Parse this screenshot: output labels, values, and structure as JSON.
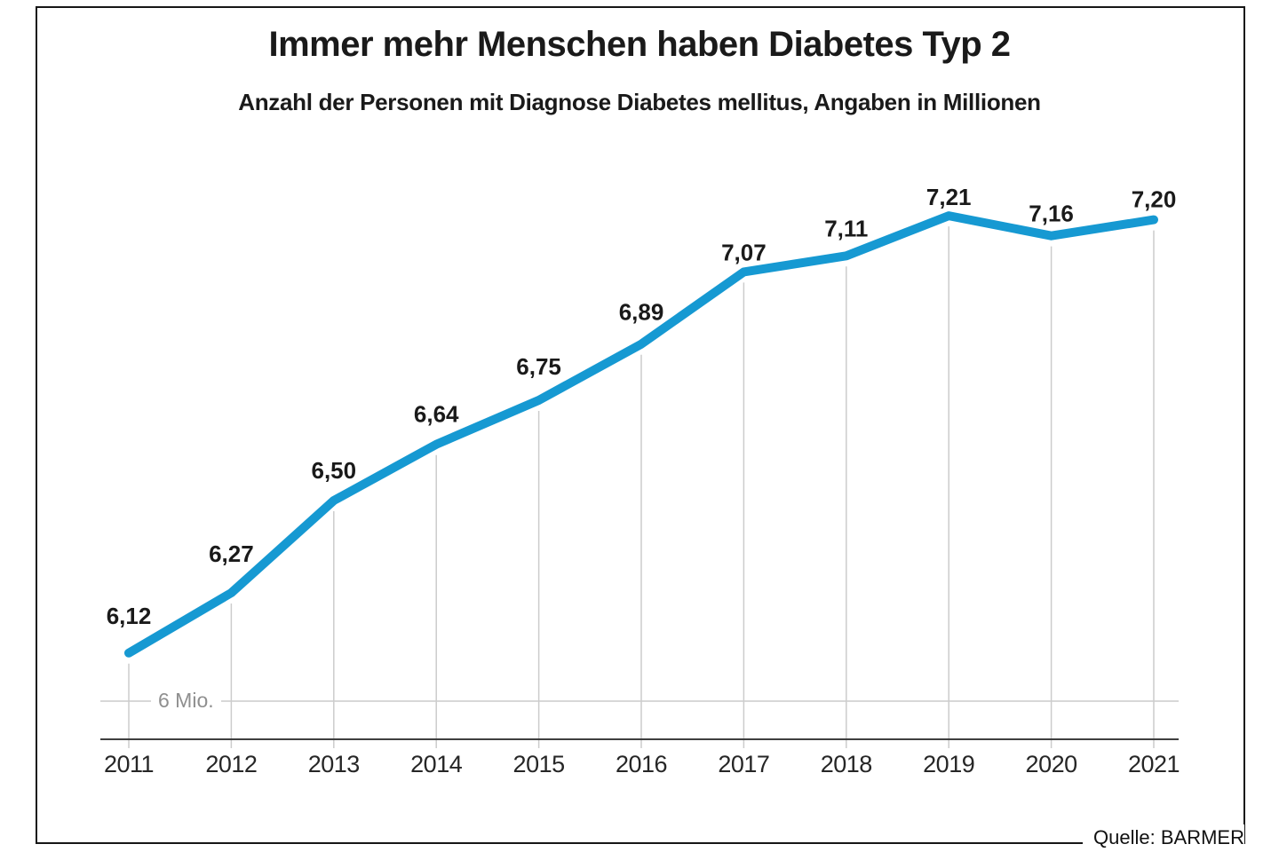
{
  "header": {
    "title": "Immer mehr Menschen haben Diabetes Typ 2",
    "subtitle": "Anzahl der Personen mit Diagnose Diabetes mellitus, Angaben in Millionen"
  },
  "footer": {
    "source": "Quelle: BARMER"
  },
  "chart_data": {
    "type": "line",
    "title": "Immer mehr Menschen haben Diabetes Typ 2",
    "subtitle": "Anzahl der Personen mit Diagnose Diabetes mellitus, Angaben in Millionen",
    "categories": [
      "2011",
      "2012",
      "2013",
      "2014",
      "2015",
      "2016",
      "2017",
      "2018",
      "2019",
      "2020",
      "2021"
    ],
    "values": [
      6.12,
      6.27,
      6.5,
      6.64,
      6.75,
      6.89,
      7.07,
      7.11,
      7.21,
      7.16,
      7.2
    ],
    "value_labels": [
      "6,12",
      "6,27",
      "6,50",
      "6,64",
      "6,75",
      "6,89",
      "7,07",
      "7,11",
      "7,21",
      "7,16",
      "7,20"
    ],
    "unit": "Millionen",
    "baseline_label": "6 Mio.",
    "baseline_value": 6.0,
    "ylim": [
      6.0,
      7.3
    ],
    "grid": "vertical-drop-lines-per-point",
    "legend": "none",
    "line_color": "#1699D2",
    "grid_color": "#cccccc",
    "axis_color": "#3f3f3f",
    "label_color": "#1a1a1a",
    "baseline_label_color": "#8f8f8f",
    "source": "Quelle: BARMER"
  }
}
